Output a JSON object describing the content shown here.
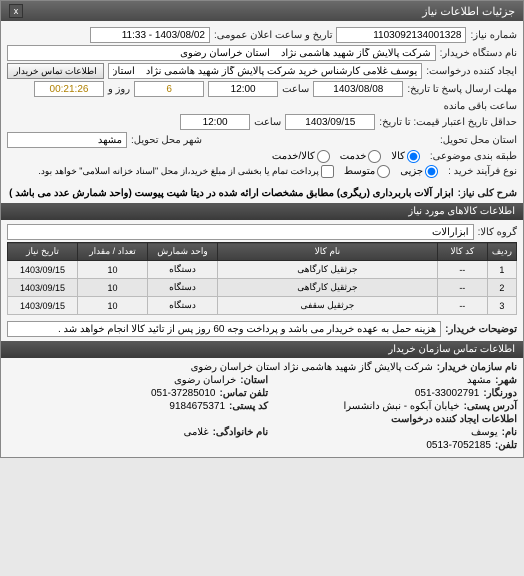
{
  "titlebar": {
    "title": "جزئیات اطلاعات نیاز",
    "close": "x"
  },
  "fields": {
    "need_number_lbl": "شماره نیاز:",
    "need_number": "1103092134001328",
    "public_announce_lbl": "تاریخ و ساعت اعلان عمومی:",
    "public_announce": "1403/08/02 - 11:33",
    "device_name_lbl": "نام دستگاه خریدار:",
    "device_name": "شرکت پالایش گاز شهید هاشمی نژاد    استان خراسان رضوی",
    "creator_lbl": "ایجاد کننده درخواست:",
    "creator": "یوسف غلامی کارشناس خرید شرکت پالایش گاز شهید هاشمی نژاد    استان خ",
    "contact_btn": "اطلاعات تماس خریدار",
    "deadline_reply_lbl": "مهلت ارسال پاسخ تا تاریخ:",
    "deadline_reply_date": "1403/08/08",
    "time_lbl": "ساعت",
    "deadline_reply_time": "12:00",
    "days_lbl": "روز و",
    "days_remaining": "6",
    "time_remaining": "00:21:26",
    "remaining_lbl": "ساعت باقی مانده",
    "min_credit_date_lbl": "حداقل تاریخ اعتبار قیمت: تا تاریخ:",
    "min_credit_date": "1403/09/15",
    "min_credit_time": "12:00",
    "delivery_province_lbl": "استان محل تحویل:",
    "delivery_city_lbl": "شهر محل تحویل:",
    "delivery_city": "مشهد",
    "subject_category_lbl": "طبقه بندی موضوعی:",
    "cat_goods": "کالا",
    "cat_service": "خدمت",
    "cat_goods_service": "کالا/خدمت",
    "purchase_type_lbl": "نوع فرآیند خرید :",
    "pt_partial": "جزیی",
    "pt_medium": "متوسط",
    "payment_note": "پرداخت تمام یا بخشی از مبلغ خرید،از محل \"اسناد خزانه اسلامی\" خواهد بود.",
    "need_title_lbl": "شرح کلی نیاز:",
    "need_title": "ابزار آلات باربرداری (ریگری) مطابق مشخصات ارائه شده در دیتا شیت پیوست (واحد شمارش عدد می باشد )",
    "goods_info_hdr": "اطلاعات کالاهای مورد نیاز",
    "goods_group_lbl": "گروه کالا:",
    "goods_group": "ابزارآلات"
  },
  "table": {
    "headers": [
      "ردیف",
      "کد کالا",
      "نام کالا",
      "واحد شمارش",
      "تعداد / مقدار",
      "تاریخ نیاز"
    ],
    "rows": [
      [
        "1",
        "--",
        "جرثقیل کارگاهی",
        "دستگاه",
        "10",
        "1403/09/15"
      ],
      [
        "2",
        "--",
        "جرثقیل کارگاهی",
        "دستگاه",
        "10",
        "1403/09/15"
      ],
      [
        "3",
        "--",
        "جرثقیل سقفی",
        "دستگاه",
        "10",
        "1403/09/15"
      ]
    ],
    "col_widths": [
      "28px",
      "50px",
      "auto",
      "70px",
      "70px",
      "70px"
    ]
  },
  "buyer_notes": {
    "lbl": "توضیحات خریدار:",
    "text": "هزینه حمل به عهده خریدار می باشد و پرداخت وجه 60 روز پس از تائید کالا انجام خواهد شد ."
  },
  "contact": {
    "hdr": "اطلاعات تماس سازمان خریدار",
    "org_lbl": "نام سازمان خریدار:",
    "org": "شرکت پالایش گاز شهید هاشمی نژاد استان خراسان رضوی",
    "city_lbl": "شهر:",
    "city": "مشهد",
    "province_lbl": "استان:",
    "province": "خراسان رضوی",
    "fax_lbl": "دورنگار:",
    "fax": "051-33002791",
    "phone_lbl": "تلفن تماس:",
    "phone": "051-37285010",
    "address_lbl": "آدرس پستی:",
    "address": "خیابان آبکوه - نبش دانشسرا",
    "postal_lbl": "کد پستی:",
    "postal": "9184675371",
    "req_creator_hdr": "اطلاعات ایجاد کننده درخواست",
    "name_lbl": "نام:",
    "name": "یوسف",
    "family_lbl": "نام خانوادگی:",
    "family": "غلامی",
    "tel_lbl": "تلفن:",
    "tel": "0513-7052185"
  },
  "colors": {
    "header_bg": "#4a4a4a",
    "highlight": "#b08000"
  }
}
